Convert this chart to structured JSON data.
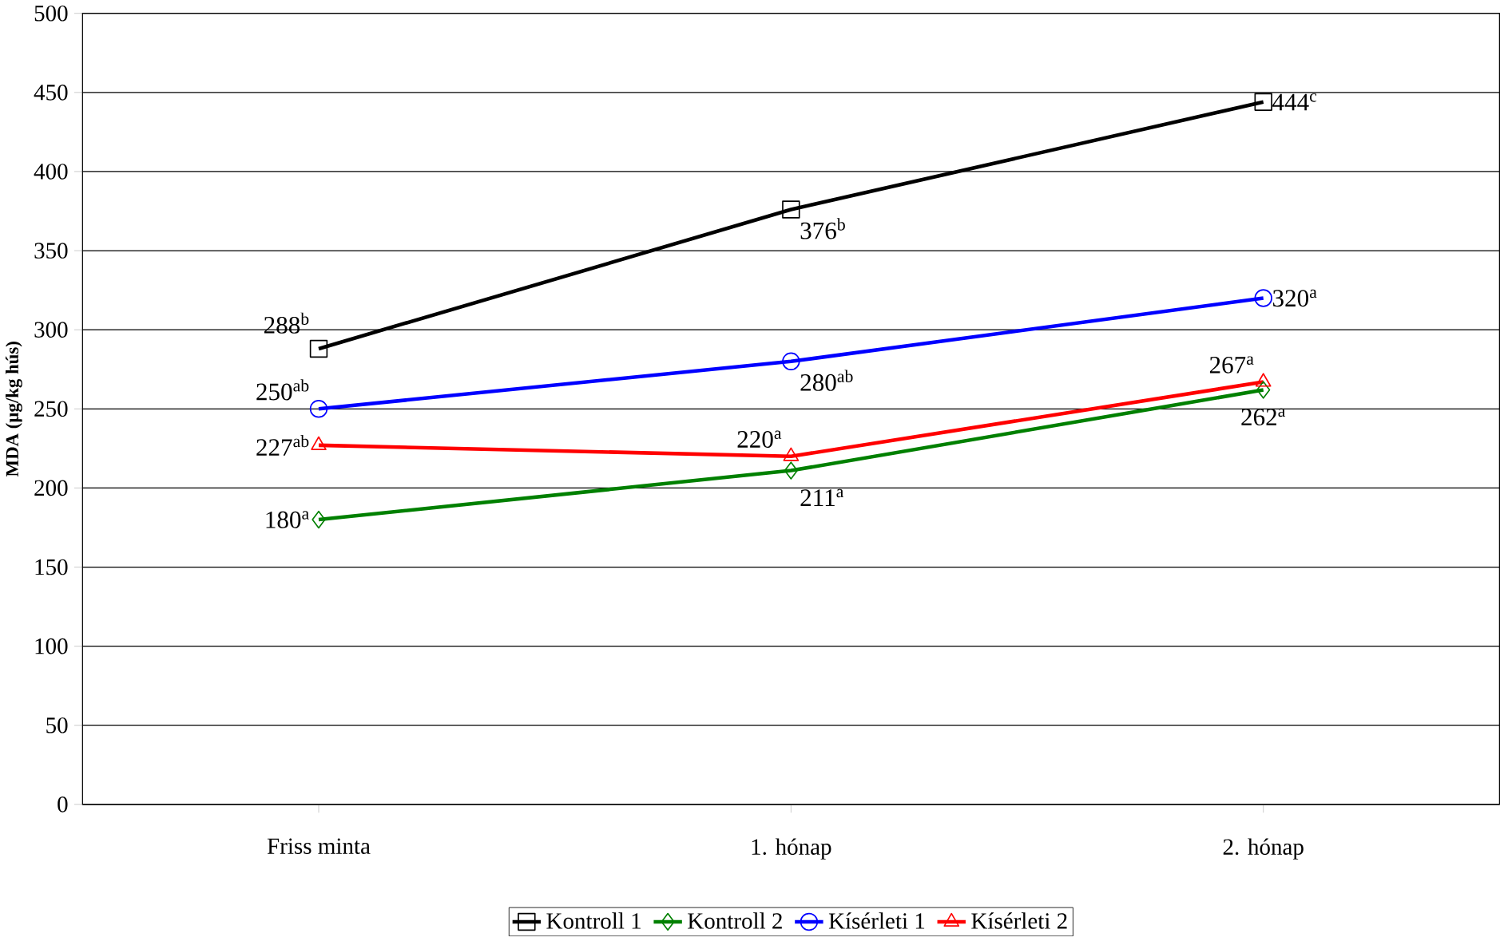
{
  "chart_data": {
    "type": "line",
    "ylabel": "**MDA (µg/kg hús)**",
    "categories": [
      "Friss minta",
      "1. hónap",
      "2. hónap"
    ],
    "ylim": [
      0,
      500
    ],
    "yticks": [
      0,
      50,
      100,
      150,
      200,
      250,
      300,
      350,
      400,
      450,
      500
    ],
    "grid": "y",
    "legend": "bottom",
    "line_style": "solid",
    "series": [
      {
        "name": "Kontroll 1",
        "color": "#000000",
        "marker": "square",
        "values": [
          288,
          376,
          444
        ],
        "value_labels": [
          "288$^{b}$",
          "376$^{b}$",
          "444$^{c}$"
        ]
      },
      {
        "name": "Kontroll 2",
        "color": "#008000",
        "marker": "diamond",
        "values": [
          180,
          211,
          262
        ],
        "value_labels": [
          "180$^{a}$",
          "211$^{a}$",
          "262$^{a}$"
        ]
      },
      {
        "name": "Kísérleti 1",
        "color": "#0000ff",
        "marker": "circle",
        "values": [
          250,
          280,
          320
        ],
        "value_labels": [
          "250$^{ab}$",
          "280$^{ab}$",
          "320$^{a}$"
        ]
      },
      {
        "name": "Kísérleti 2",
        "color": "#ff0000",
        "marker": "triangle",
        "values": [
          227,
          220,
          267
        ],
        "value_labels": [
          "227$^{ab}$",
          "220$^{a}$",
          "267$^{a}$"
        ]
      }
    ]
  }
}
